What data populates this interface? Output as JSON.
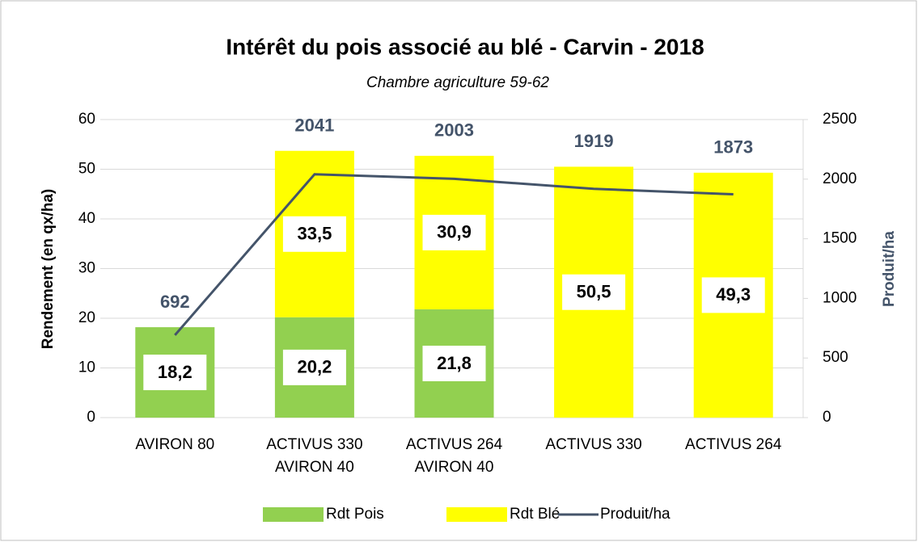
{
  "chart_data": {
    "type": "bar",
    "title": "Intérêt du pois associé au blé -  Carvin - 2018",
    "subtitle": "Chambre agriculture 59-62",
    "y_label": "Rendement (en qx/ha)",
    "y2_label": "Produit/ha",
    "categories": [
      [
        "AVIRON 80"
      ],
      [
        "ACTIVUS 330",
        "AVIRON 40"
      ],
      [
        "ACTIVUS 264",
        "AVIRON 40"
      ],
      [
        "ACTIVUS 330"
      ],
      [
        "ACTIVUS 264"
      ]
    ],
    "series": [
      {
        "name": "Rdt Pois",
        "type": "bar",
        "color": "#92d050",
        "values": [
          18.2,
          20.2,
          21.8,
          null,
          null
        ],
        "value_labels": [
          "18,2",
          "20,2",
          "21,8",
          null,
          null
        ]
      },
      {
        "name": "Rdt Blé",
        "type": "bar",
        "color": "#ffff00",
        "values": [
          null,
          33.5,
          30.9,
          50.5,
          49.3
        ],
        "value_labels": [
          null,
          "33,5",
          "30,9",
          "50,5",
          "49,3"
        ]
      },
      {
        "name": "Produit/ha",
        "type": "line",
        "axis": "y2",
        "color": "#44546a",
        "values": [
          692,
          2041,
          2003,
          1919,
          1873
        ]
      }
    ],
    "ylim": [
      0,
      60
    ],
    "yticks": [
      0,
      10,
      20,
      30,
      40,
      50,
      60
    ],
    "y2lim": [
      0,
      2500
    ],
    "y2ticks": [
      0,
      500,
      1000,
      1500,
      2000,
      2500
    ],
    "grid": true,
    "legend": "bottom"
  }
}
